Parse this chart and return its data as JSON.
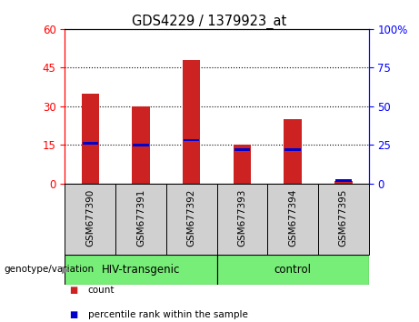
{
  "title": "GDS4229 / 1379923_at",
  "categories": [
    "GSM677390",
    "GSM677391",
    "GSM677392",
    "GSM677393",
    "GSM677394",
    "GSM677395"
  ],
  "count_values": [
    35,
    30,
    48,
    15,
    25,
    1
  ],
  "percentile_values": [
    26,
    25,
    28,
    22,
    22,
    2
  ],
  "left_ylim": [
    0,
    60
  ],
  "right_ylim": [
    0,
    100
  ],
  "left_yticks": [
    0,
    15,
    30,
    45,
    60
  ],
  "right_yticks": [
    0,
    25,
    50,
    75,
    100
  ],
  "right_yticklabels": [
    "0",
    "25",
    "50",
    "75",
    "100%"
  ],
  "bar_color": "#cc2222",
  "percentile_color": "#0000cc",
  "group1_label": "HIV-transgenic",
  "group2_label": "control",
  "group_bg": "#77ee77",
  "label_bg": "#d0d0d0",
  "genotype_label": "genotype/variation",
  "legend_count": "count",
  "legend_percentile": "percentile rank within the sample",
  "bar_width": 0.35,
  "figsize": [
    4.61,
    3.54
  ],
  "dpi": 100
}
